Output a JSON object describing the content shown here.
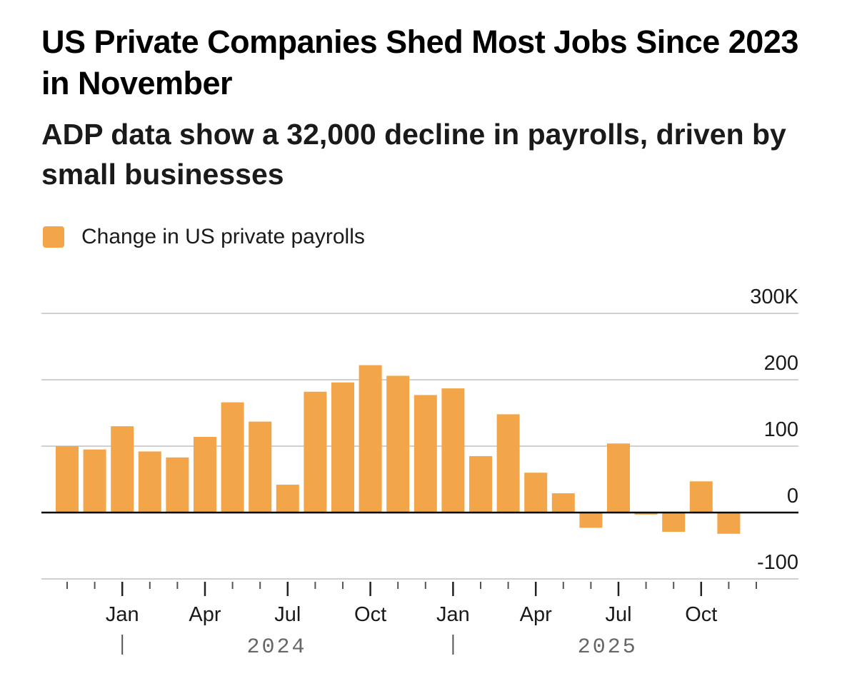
{
  "header": {
    "title": "US Private Companies Shed Most Jobs Since 2023 in November",
    "subtitle": "ADP data show a 32,000 decline in payrolls, driven by small businesses"
  },
  "legend": {
    "label": "Change in US private payrolls",
    "color": "#f2a649"
  },
  "chart_data": {
    "type": "bar",
    "title": "US Private Companies Shed Most Jobs Since 2023 in November",
    "subtitle": "ADP data show a 32,000 decline in payrolls, driven by small businesses",
    "series": [
      {
        "name": "Change in US private payrolls",
        "color": "#f2a649",
        "categories": [
          "Nov 2023",
          "Dec 2023",
          "Jan 2024",
          "Feb 2024",
          "Mar 2024",
          "Apr 2024",
          "May 2024",
          "Jun 2024",
          "Jul 2024",
          "Aug 2024",
          "Sep 2024",
          "Oct 2024",
          "Nov 2024",
          "Dec 2024",
          "Jan 2025",
          "Feb 2025",
          "Mar 2025",
          "Apr 2025",
          "May 2025",
          "Jun 2025",
          "Jul 2025",
          "Aug 2025",
          "Sep 2025",
          "Oct 2025",
          "Nov 2025"
        ],
        "values": [
          100,
          95,
          130,
          92,
          83,
          114,
          166,
          137,
          42,
          182,
          196,
          222,
          206,
          177,
          187,
          85,
          148,
          60,
          29,
          -23,
          104,
          -3,
          -29,
          47,
          -32
        ]
      }
    ],
    "y_axis": {
      "ylim": [
        -100,
        300
      ],
      "ticks": [
        -100,
        0,
        100,
        200,
        300
      ],
      "tick_labels": [
        "-100",
        "0",
        "100",
        "200",
        "300K"
      ],
      "position": "right",
      "grid": true
    },
    "x_axis": {
      "major_ticks": [
        {
          "index": 2,
          "label": "Jan"
        },
        {
          "index": 5,
          "label": "Apr"
        },
        {
          "index": 8,
          "label": "Jul"
        },
        {
          "index": 11,
          "label": "Oct"
        },
        {
          "index": 14,
          "label": "Jan"
        },
        {
          "index": 17,
          "label": "Apr"
        },
        {
          "index": 20,
          "label": "Jul"
        },
        {
          "index": 23,
          "label": "Oct"
        }
      ],
      "years": [
        {
          "label": "2024",
          "start_index": 2,
          "end_index": 13
        },
        {
          "label": "2025",
          "start_index": 14,
          "end_index": 25
        }
      ]
    }
  }
}
